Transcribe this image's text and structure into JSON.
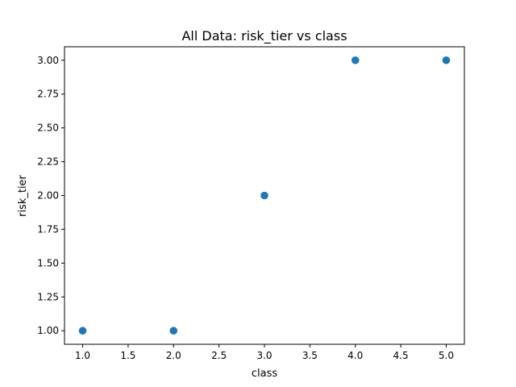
{
  "chart_data": {
    "type": "scatter",
    "title": "All Data: risk_tier vs class",
    "xlabel": "class",
    "ylabel": "risk_tier",
    "xlim": [
      0.8,
      5.2
    ],
    "ylim": [
      0.9,
      3.1
    ],
    "xticks": [
      "1.0",
      "1.5",
      "2.0",
      "2.5",
      "3.0",
      "3.5",
      "4.0",
      "4.5",
      "5.0"
    ],
    "yticks": [
      "1.00",
      "1.25",
      "1.50",
      "1.75",
      "2.00",
      "2.25",
      "2.50",
      "2.75",
      "3.00"
    ],
    "grid": false,
    "series": [
      {
        "color": "#1f77b4",
        "points": [
          {
            "x": 1.0,
            "y": 1.0
          },
          {
            "x": 2.0,
            "y": 1.0
          },
          {
            "x": 3.0,
            "y": 2.0
          },
          {
            "x": 4.0,
            "y": 3.0
          },
          {
            "x": 5.0,
            "y": 3.0
          }
        ]
      }
    ]
  }
}
